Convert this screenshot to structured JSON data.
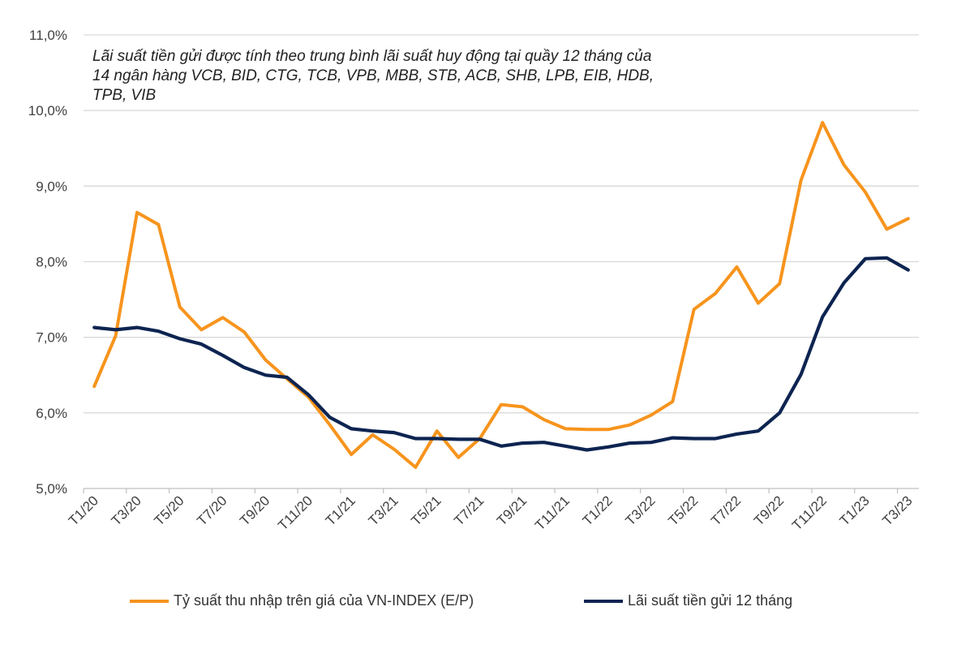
{
  "chart_data": {
    "type": "line",
    "title": "",
    "note": "Lãi suất tiền gửi được tính theo trung bình lãi suất huy động tại quầy 12 tháng của 14 ngân hàng VCB, BID, CTG, TCB, VPB, MBB, STB, ACB, SHB, LPB, EIB, HDB, TPB, VIB",
    "xlabel": "",
    "ylabel": "",
    "ylim": [
      5.0,
      11.0
    ],
    "yticks": [
      "5,0%",
      "6,0%",
      "7,0%",
      "8,0%",
      "9,0%",
      "10,0%",
      "11,0%"
    ],
    "grid": true,
    "legend_position": "bottom",
    "x": [
      "T1/20",
      "T2/20",
      "T3/20",
      "T4/20",
      "T5/20",
      "T6/20",
      "T7/20",
      "T8/20",
      "T9/20",
      "T10/20",
      "T11/20",
      "T12/20",
      "T1/21",
      "T2/21",
      "T3/21",
      "T4/21",
      "T5/21",
      "T6/21",
      "T7/21",
      "T8/21",
      "T9/21",
      "T10/21",
      "T11/21",
      "T12/21",
      "T1/22",
      "T2/22",
      "T3/22",
      "T4/22",
      "T5/22",
      "T6/22",
      "T7/22",
      "T8/22",
      "T9/22",
      "T10/22",
      "T11/22",
      "T12/22",
      "T1/23",
      "T2/23",
      "T3/23"
    ],
    "xtick_labels": [
      "T1/20",
      "T3/20",
      "T5/20",
      "T7/20",
      "T9/20",
      "T11/20",
      "T1/21",
      "T3/21",
      "T5/21",
      "T7/21",
      "T9/21",
      "T11/21",
      "T1/22",
      "T3/22",
      "T5/22",
      "T7/22",
      "T9/22",
      "T11/22",
      "T1/23",
      "T3/23"
    ],
    "series": [
      {
        "name": "Tỷ suất thu nhập trên giá của VN-INDEX (E/P)",
        "color": "#F7941D",
        "values": [
          6.35,
          7.02,
          8.65,
          8.49,
          7.4,
          7.1,
          7.26,
          7.07,
          6.7,
          6.45,
          6.21,
          5.84,
          5.45,
          5.71,
          5.52,
          5.28,
          5.76,
          5.41,
          5.66,
          6.11,
          6.08,
          5.91,
          5.79,
          5.78,
          5.78,
          5.84,
          5.97,
          6.15,
          7.37,
          7.58,
          7.93,
          7.45,
          7.71,
          9.08,
          9.84,
          9.28,
          8.92,
          8.43,
          8.57
        ]
      },
      {
        "name": "Lãi suất tiền gửi 12 tháng",
        "color": "#0D2451",
        "values": [
          7.13,
          7.1,
          7.13,
          7.08,
          6.98,
          6.91,
          6.76,
          6.6,
          6.5,
          6.47,
          6.24,
          5.94,
          5.79,
          5.76,
          5.74,
          5.66,
          5.66,
          5.65,
          5.65,
          5.56,
          5.6,
          5.61,
          5.56,
          5.51,
          5.55,
          5.6,
          5.61,
          5.67,
          5.66,
          5.66,
          5.72,
          5.76,
          6.0,
          6.51,
          7.27,
          7.72,
          8.04,
          8.05,
          7.89
        ]
      }
    ]
  }
}
